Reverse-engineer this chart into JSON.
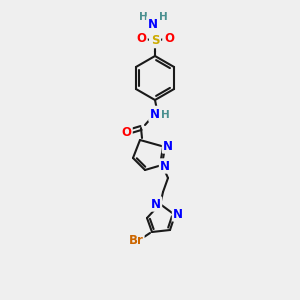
{
  "bg_color": "#efefef",
  "bond_color": "#1a1a1a",
  "bond_lw": 1.5,
  "atom_colors": {
    "N": "#0000ff",
    "O": "#ff0000",
    "S": "#ccaa00",
    "Br": "#cc6600",
    "H": "#4a9090",
    "C": "#1a1a1a"
  },
  "font_size": 8.5,
  "font_size_small": 7.5
}
